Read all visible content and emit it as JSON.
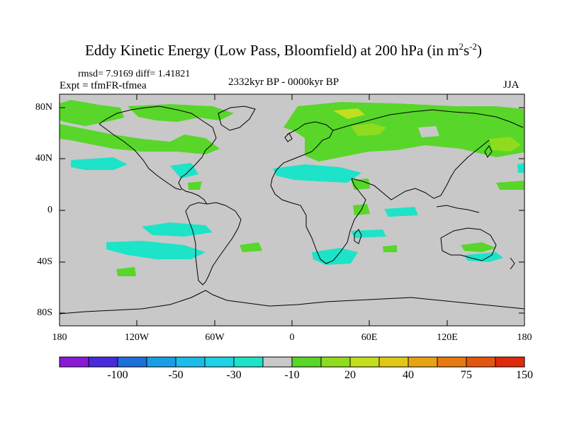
{
  "title": {
    "main": "Eddy Kinetic Energy (Low Pass, Bloomfield) at 200 hPa (in m",
    "sup1": "2",
    "mid": "s",
    "sup2": "-2",
    "end": ")"
  },
  "stats": "rmsd= 7.9169 diff= 1.41821",
  "experiment": "Expt = tfmFR-tfmea",
  "period": "2332kyr BP - 0000kyr BP",
  "season": "JJA",
  "axes": {
    "lat_labels": [
      "80N",
      "40N",
      "0",
      "40S",
      "80S"
    ],
    "lon_labels": [
      "180",
      "120W",
      "60W",
      "0",
      "60E",
      "120E",
      "180"
    ]
  },
  "colorbar": {
    "colors": [
      "#8b1ad6",
      "#4a2adb",
      "#1d6fdb",
      "#1a9ee3",
      "#1bbce8",
      "#1ed2e6",
      "#1de3c8",
      "#c8c8c8",
      "#58d62a",
      "#8fdc1e",
      "#c3de1e",
      "#e2c816",
      "#e8a314",
      "#e67a10",
      "#e4560e",
      "#e02a0c"
    ],
    "labels": [
      "-100",
      "-50",
      "-30",
      "-10",
      "20",
      "40",
      "75",
      "150"
    ]
  },
  "colors": {
    "background": "#c8c8c8",
    "positive_low": "#58d62a",
    "positive_mid": "#8fdc1e",
    "positive_high": "#c3de1e",
    "negative_low": "#1de3c8"
  }
}
